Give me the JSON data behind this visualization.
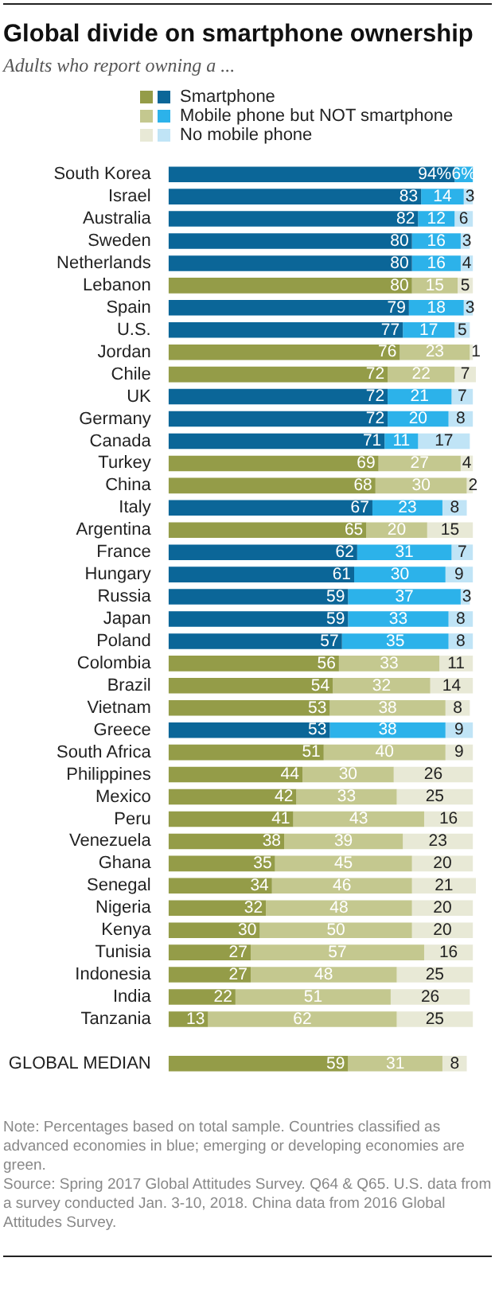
{
  "chart_data": {
    "type": "bar",
    "orientation": "horizontal",
    "stacked": true,
    "title": "Global divide on smartphone ownership",
    "subtitle": "Adults who report owning a ...",
    "categories": [
      "South Korea",
      "Israel",
      "Australia",
      "Sweden",
      "Netherlands",
      "Lebanon",
      "Spain",
      "U.S.",
      "Jordan",
      "Chile",
      "UK",
      "Germany",
      "Canada",
      "Turkey",
      "China",
      "Italy",
      "Argentina",
      "France",
      "Hungary",
      "Russia",
      "Japan",
      "Poland",
      "Colombia",
      "Brazil",
      "Vietnam",
      "Greece",
      "South Africa",
      "Philippines",
      "Mexico",
      "Peru",
      "Venezuela",
      "Ghana",
      "Senegal",
      "Nigeria",
      "Kenya",
      "Tunisia",
      "Indonesia",
      "India",
      "Tanzania",
      null,
      "GLOBAL MEDIAN"
    ],
    "series": [
      {
        "name": "Smartphone",
        "color": "#949c48",
        "values": [
          94,
          83,
          82,
          80,
          80,
          80,
          79,
          77,
          76,
          72,
          72,
          72,
          71,
          69,
          68,
          67,
          65,
          62,
          61,
          59,
          59,
          57,
          56,
          54,
          53,
          53,
          51,
          44,
          42,
          41,
          38,
          35,
          34,
          32,
          30,
          27,
          27,
          22,
          13,
          null,
          59
        ],
        "value_labels": [
          "94%",
          "83",
          "82",
          "80",
          "80",
          "80",
          "79",
          "77",
          "76",
          "72",
          "72",
          "72",
          "71",
          "69",
          "68",
          "67",
          "65",
          "62",
          "61",
          "59",
          "59",
          "57",
          "56",
          "54",
          "53",
          "53",
          "51",
          "44",
          "42",
          "41",
          "38",
          "35",
          "34",
          "32",
          "30",
          "27",
          "27",
          "22",
          "13",
          null,
          "59"
        ],
        "colors": [
          "#0b6698",
          "#0b6698",
          "#0b6698",
          "#0b6698",
          "#0b6698",
          "#949c48",
          "#0b6698",
          "#0b6698",
          "#949c48",
          "#949c48",
          "#0b6698",
          "#0b6698",
          "#0b6698",
          "#949c48",
          "#949c48",
          "#0b6698",
          "#949c48",
          "#0b6698",
          "#0b6698",
          "#0b6698",
          "#0b6698",
          "#0b6698",
          "#949c48",
          "#949c48",
          "#949c48",
          "#0b6698",
          "#949c48",
          "#949c48",
          "#949c48",
          "#949c48",
          "#949c48",
          "#949c48",
          "#949c48",
          "#949c48",
          "#949c48",
          "#949c48",
          "#949c48",
          "#949c48",
          "#949c48",
          "#949c48",
          "#949c48"
        ]
      },
      {
        "name": "Mobile phone but NOT smartphone",
        "color": "#c4c88f",
        "values": [
          6,
          14,
          12,
          16,
          16,
          15,
          18,
          17,
          23,
          22,
          21,
          20,
          11,
          27,
          30,
          23,
          20,
          31,
          30,
          37,
          33,
          35,
          33,
          32,
          38,
          38,
          40,
          30,
          33,
          43,
          39,
          45,
          46,
          48,
          50,
          57,
          48,
          51,
          62,
          null,
          31
        ],
        "value_labels": [
          "6%",
          "14",
          "12",
          "16",
          "16",
          "15",
          "18",
          "17",
          "23",
          "22",
          "21",
          "20",
          "11",
          "27",
          "30",
          "23",
          "20",
          "31",
          "30",
          "37",
          "33",
          "35",
          "33",
          "32",
          "38",
          "38",
          "40",
          "30",
          "33",
          "43",
          "39",
          "45",
          "46",
          "48",
          "50",
          "57",
          "48",
          "51",
          "62",
          null,
          "31"
        ],
        "colors": [
          "#2cb2ea",
          "#2cb2ea",
          "#2cb2ea",
          "#2cb2ea",
          "#2cb2ea",
          "#c4c88f",
          "#2cb2ea",
          "#2cb2ea",
          "#c4c88f",
          "#c4c88f",
          "#2cb2ea",
          "#2cb2ea",
          "#2cb2ea",
          "#c4c88f",
          "#c4c88f",
          "#2cb2ea",
          "#c4c88f",
          "#2cb2ea",
          "#2cb2ea",
          "#2cb2ea",
          "#2cb2ea",
          "#2cb2ea",
          "#c4c88f",
          "#c4c88f",
          "#c4c88f",
          "#2cb2ea",
          "#c4c88f",
          "#c4c88f",
          "#c4c88f",
          "#c4c88f",
          "#c4c88f",
          "#c4c88f",
          "#c4c88f",
          "#c4c88f",
          "#c4c88f",
          "#c4c88f",
          "#c4c88f",
          "#c4c88f",
          "#c4c88f",
          "#c4c88f",
          "#c4c88f"
        ]
      },
      {
        "name": "No mobile phone",
        "color": "#e8e9d6",
        "values": [
          null,
          3,
          6,
          3,
          4,
          5,
          3,
          5,
          1,
          7,
          7,
          8,
          17,
          4,
          2,
          8,
          15,
          7,
          9,
          3,
          8,
          8,
          11,
          14,
          8,
          9,
          9,
          26,
          25,
          16,
          23,
          20,
          21,
          20,
          20,
          16,
          25,
          26,
          25,
          null,
          8
        ],
        "value_labels": [
          null,
          "3",
          "6",
          "3",
          "4",
          "5",
          "3",
          "5",
          "1",
          "7",
          "7",
          "8",
          "17",
          "4",
          "2",
          "8",
          "15",
          "7",
          "9",
          "3",
          "8",
          "8",
          "11",
          "14",
          "8",
          "9",
          "9",
          "26",
          "25",
          "16",
          "23",
          "20",
          "21",
          "20",
          "20",
          "16",
          "25",
          "26",
          "25",
          null,
          "8"
        ],
        "colors": [
          "#c0e4f6",
          "#c0e4f6",
          "#c0e4f6",
          "#c0e4f6",
          "#c0e4f6",
          "#e8e9d6",
          "#c0e4f6",
          "#c0e4f6",
          "#e8e9d6",
          "#e8e9d6",
          "#c0e4f6",
          "#c0e4f6",
          "#c0e4f6",
          "#e8e9d6",
          "#e8e9d6",
          "#c0e4f6",
          "#e8e9d6",
          "#c0e4f6",
          "#c0e4f6",
          "#c0e4f6",
          "#c0e4f6",
          "#c0e4f6",
          "#e8e9d6",
          "#e8e9d6",
          "#e8e9d6",
          "#c0e4f6",
          "#e8e9d6",
          "#e8e9d6",
          "#e8e9d6",
          "#e8e9d6",
          "#e8e9d6",
          "#e8e9d6",
          "#e8e9d6",
          "#e8e9d6",
          "#e8e9d6",
          "#e8e9d6",
          "#e8e9d6",
          "#e8e9d6",
          "#e8e9d6",
          "#e8e9d6",
          "#e8e9d6"
        ]
      }
    ],
    "xlim": [
      0,
      101
    ],
    "tick_labels": "y",
    "legend": "top",
    "annotations": [
      "Note: Percentages based on total sample. Countries classified as advanced economies in blue; emerging or developing economies are green.",
      "Source: Spring 2017 Global Attitudes Survey. Q64 & Q65. U.S. data from a survey conducted Jan. 3-10, 2018. China data from 2016 Global Attitudes Survey."
    ]
  }
}
